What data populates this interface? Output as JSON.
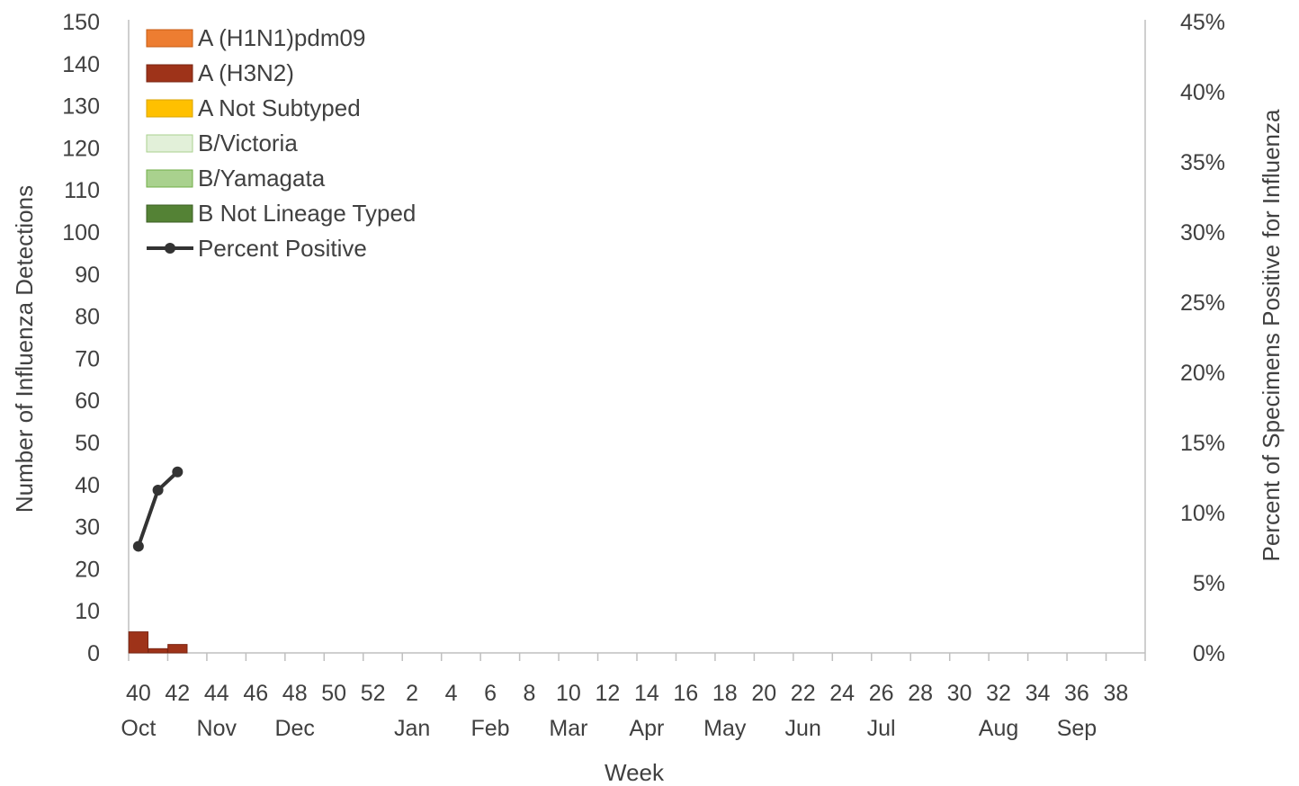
{
  "chart_data": {
    "type": "bar",
    "stacked": true,
    "xlabel": "Week",
    "ylabel": "Number of Influenza Detections",
    "y2label": "Percent  of Specimens Positive for Influenza",
    "ylim": [
      0,
      150
    ],
    "y_ticks": [
      0,
      10,
      20,
      30,
      40,
      50,
      60,
      70,
      80,
      90,
      100,
      110,
      120,
      130,
      140,
      150
    ],
    "y2lim": [
      0,
      45
    ],
    "y2_ticks": [
      "0%",
      "5%",
      "10%",
      "15%",
      "20%",
      "25%",
      "30%",
      "35%",
      "40%",
      "45%"
    ],
    "y2_tick_values": [
      0,
      5,
      10,
      15,
      20,
      25,
      30,
      35,
      40,
      45
    ],
    "weeks": [
      40,
      41,
      42,
      43,
      44,
      45,
      46,
      47,
      48,
      49,
      50,
      51,
      52,
      1,
      2,
      3,
      4,
      5,
      6,
      7,
      8,
      9,
      10,
      11,
      12,
      13,
      14,
      15,
      16,
      17,
      18,
      19,
      20,
      21,
      22,
      23,
      24,
      25,
      26,
      27,
      28,
      29,
      30,
      31,
      32,
      33,
      34,
      35,
      36,
      37,
      38,
      39
    ],
    "week_labels": [
      {
        "week": 40,
        "label": "40"
      },
      {
        "week": 42,
        "label": "42"
      },
      {
        "week": 44,
        "label": "44"
      },
      {
        "week": 46,
        "label": "46"
      },
      {
        "week": 48,
        "label": "48"
      },
      {
        "week": 50,
        "label": "50"
      },
      {
        "week": 52,
        "label": "52"
      },
      {
        "week": 2,
        "label": "2"
      },
      {
        "week": 4,
        "label": "4"
      },
      {
        "week": 6,
        "label": "6"
      },
      {
        "week": 8,
        "label": "8"
      },
      {
        "week": 10,
        "label": "10"
      },
      {
        "week": 12,
        "label": "12"
      },
      {
        "week": 14,
        "label": "14"
      },
      {
        "week": 16,
        "label": "16"
      },
      {
        "week": 18,
        "label": "18"
      },
      {
        "week": 20,
        "label": "20"
      },
      {
        "week": 22,
        "label": "22"
      },
      {
        "week": 24,
        "label": "24"
      },
      {
        "week": 26,
        "label": "26"
      },
      {
        "week": 28,
        "label": "28"
      },
      {
        "week": 30,
        "label": "30"
      },
      {
        "week": 32,
        "label": "32"
      },
      {
        "week": 34,
        "label": "34"
      },
      {
        "week": 36,
        "label": "36"
      },
      {
        "week": 38,
        "label": "38"
      }
    ],
    "month_labels": [
      {
        "week": 40,
        "label": "Oct"
      },
      {
        "week": 44,
        "label": "Nov"
      },
      {
        "week": 48,
        "label": "Dec"
      },
      {
        "week": 2,
        "label": "Jan"
      },
      {
        "week": 6,
        "label": "Feb"
      },
      {
        "week": 10,
        "label": "Mar"
      },
      {
        "week": 14,
        "label": "Apr"
      },
      {
        "week": 18,
        "label": "May"
      },
      {
        "week": 22,
        "label": "Jun"
      },
      {
        "week": 26,
        "label": "Jul"
      },
      {
        "week": 32,
        "label": "Aug"
      },
      {
        "week": 36,
        "label": "Sep"
      }
    ],
    "series": [
      {
        "name": "A (H1N1)pdm09",
        "color": "#ED7D31",
        "border": "#C55A11",
        "data": {
          "40": 0,
          "41": 0,
          "42": 0
        }
      },
      {
        "name": "A (H3N2)",
        "color": "#9E3319",
        "border": "#7A2512",
        "data": {
          "40": 5,
          "41": 1,
          "42": 2
        }
      },
      {
        "name": "A Not Subtyped",
        "color": "#FFC000",
        "border": "#D9A300",
        "data": {
          "40": 0,
          "41": 0,
          "42": 0
        }
      },
      {
        "name": "B/Victoria",
        "color": "#E2F0D9",
        "border": "#A9D18E",
        "data": {
          "40": 0,
          "41": 0,
          "42": 0
        }
      },
      {
        "name": "B/Yamagata",
        "color": "#A9D18E",
        "border": "#70AD47",
        "data": {
          "40": 0,
          "41": 0,
          "42": 0
        }
      },
      {
        "name": "B Not Lineage Typed",
        "color": "#548235",
        "border": "#3B5E24",
        "data": {
          "40": 0,
          "41": 0,
          "42": 0
        }
      }
    ],
    "line_series": {
      "name": "Percent Positive",
      "color": "#333333",
      "axis": "right",
      "points": [
        {
          "week": 40,
          "value": 7.6
        },
        {
          "week": 41,
          "value": 11.6
        },
        {
          "week": 42,
          "value": 12.9
        }
      ]
    },
    "legend_position": "top-left",
    "grid": false
  }
}
